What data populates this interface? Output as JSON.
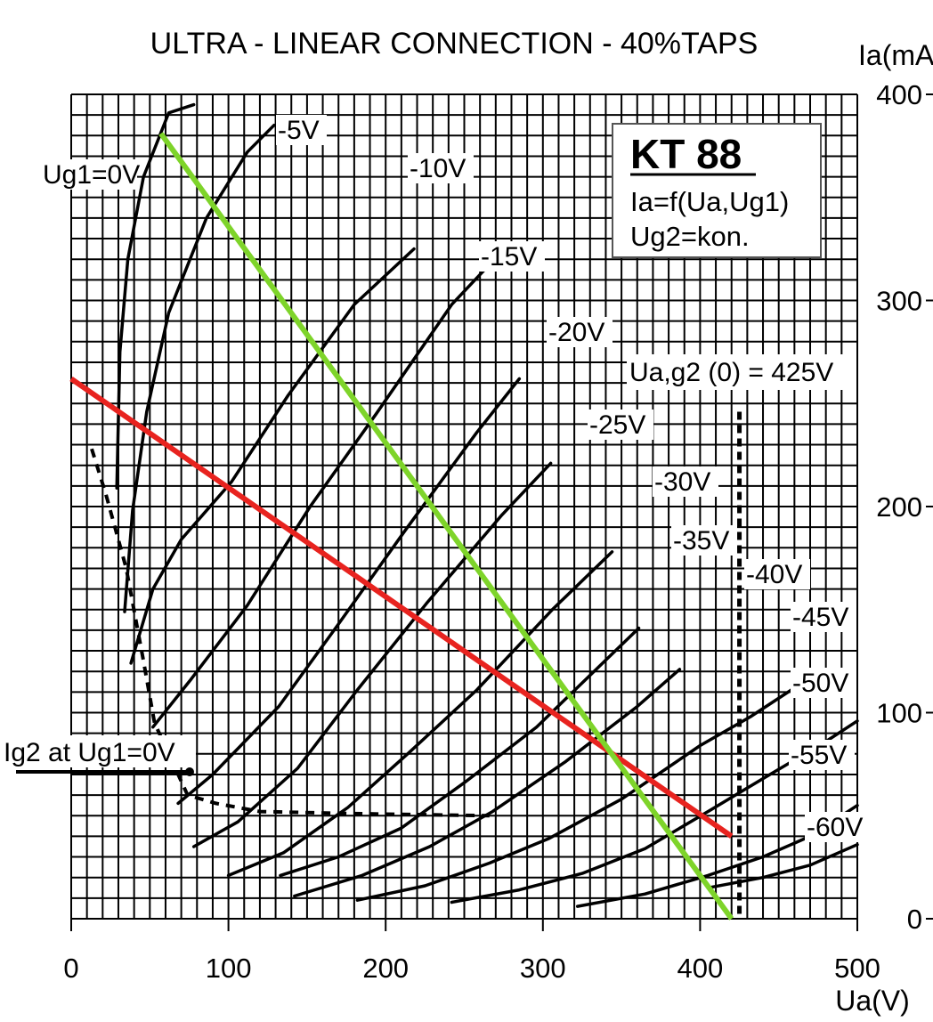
{
  "chart_data": {
    "type": "line",
    "title": "ULTRA - LINEAR CONNECTION - 40%TAPS",
    "xlabel": "Ua(V)",
    "ylabel": "Ia(mA",
    "xlim": [
      0,
      500
    ],
    "ylim": [
      0,
      400
    ],
    "x_ticks": [
      0,
      100,
      200,
      300,
      400,
      500
    ],
    "y_ticks": [
      0,
      100,
      200,
      300,
      400
    ],
    "grid": true,
    "tube_box": {
      "name": "KT 88",
      "line1": "Ia=f(Ua,Ug1)",
      "line2": "Ug2=kon."
    },
    "screen_supply_label": "Ua,g2 (0) = 425V",
    "screen_current_label": "Ig2 at Ug1=0V",
    "series": [
      {
        "name": "Ug1=0V",
        "points": [
          [
            29,
            209
          ],
          [
            31,
            275
          ],
          [
            36,
            320
          ],
          [
            46,
            360
          ],
          [
            62,
            391
          ],
          [
            78,
            395
          ]
        ]
      },
      {
        "name": "-5V",
        "points": [
          [
            34,
            149
          ],
          [
            39,
            198
          ],
          [
            48,
            246
          ],
          [
            62,
            294
          ],
          [
            86,
            340
          ],
          [
            112,
            372
          ],
          [
            129,
            385
          ]
        ]
      },
      {
        "name": "-10V",
        "points": [
          [
            38,
            124
          ],
          [
            52,
            160
          ],
          [
            70,
            184
          ],
          [
            102,
            212
          ],
          [
            138,
            254
          ],
          [
            180,
            298
          ],
          [
            218,
            325
          ]
        ]
      },
      {
        "name": "-15V",
        "points": [
          [
            52,
            93
          ],
          [
            76,
            116
          ],
          [
            112,
            152
          ],
          [
            152,
            200
          ],
          [
            194,
            245
          ],
          [
            242,
            298
          ],
          [
            263,
            315
          ]
        ]
      },
      {
        "name": "-20V",
        "points": [
          [
            68,
            56
          ],
          [
            90,
            70
          ],
          [
            132,
            103
          ],
          [
            170,
            143
          ],
          [
            212,
            188
          ],
          [
            258,
            236
          ],
          [
            285,
            262
          ]
        ]
      },
      {
        "name": "-25V",
        "points": [
          [
            78,
            35
          ],
          [
            106,
            47
          ],
          [
            144,
            73
          ],
          [
            182,
            111
          ],
          [
            226,
            153
          ],
          [
            274,
            196
          ],
          [
            305,
            221
          ]
        ]
      },
      {
        "name": "-30V",
        "points": [
          [
            100,
            21
          ],
          [
            135,
            32
          ],
          [
            176,
            54
          ],
          [
            214,
            80
          ],
          [
            258,
            111
          ],
          [
            306,
            150
          ],
          [
            344,
            178
          ]
        ]
      },
      {
        "name": "-35V",
        "points": [
          [
            133,
            21
          ],
          [
            170,
            30
          ],
          [
            210,
            44
          ],
          [
            250,
            66
          ],
          [
            296,
            93
          ],
          [
            338,
            124
          ],
          [
            361,
            141
          ]
        ]
      },
      {
        "name": "-40V",
        "points": [
          [
            142,
            11
          ],
          [
            185,
            21
          ],
          [
            228,
            35
          ],
          [
            268,
            52
          ],
          [
            314,
            76
          ],
          [
            360,
            103
          ],
          [
            387,
            121
          ]
        ]
      },
      {
        "name": "-45V",
        "points": [
          [
            182,
            9
          ],
          [
            225,
            16
          ],
          [
            266,
            27
          ],
          [
            304,
            39
          ],
          [
            350,
            58
          ],
          [
            400,
            84
          ],
          [
            432,
            98
          ],
          [
            464,
            114
          ]
        ]
      },
      {
        "name": "-50V",
        "points": [
          [
            242,
            8
          ],
          [
            285,
            14
          ],
          [
            325,
            22
          ],
          [
            365,
            34
          ],
          [
            405,
            52
          ],
          [
            440,
            68
          ],
          [
            480,
            86
          ],
          [
            500,
            96
          ]
        ]
      },
      {
        "name": "-55V",
        "points": [
          [
            322,
            6
          ],
          [
            365,
            12
          ],
          [
            405,
            21
          ],
          [
            440,
            30
          ],
          [
            470,
            40
          ],
          [
            500,
            55
          ]
        ]
      },
      {
        "name": "-60V",
        "points": [
          [
            405,
            15
          ],
          [
            440,
            20
          ],
          [
            470,
            26
          ],
          [
            500,
            36
          ]
        ]
      }
    ],
    "screen_current_curve": [
      [
        13,
        228
      ],
      [
        22,
        206
      ],
      [
        35,
        170
      ],
      [
        46,
        125
      ],
      [
        53,
        95
      ],
      [
        74,
        60
      ],
      [
        92,
        56
      ],
      [
        120,
        52
      ],
      [
        180,
        51
      ],
      [
        266,
        50
      ]
    ],
    "screen_supply_line_x": 425,
    "load_lines": [
      {
        "color": "#e8231f",
        "points": [
          [
            0,
            262
          ],
          [
            420,
            40
          ]
        ]
      },
      {
        "color": "#7ed42a",
        "points": [
          [
            57,
            381
          ],
          [
            420,
            0
          ]
        ]
      }
    ]
  }
}
